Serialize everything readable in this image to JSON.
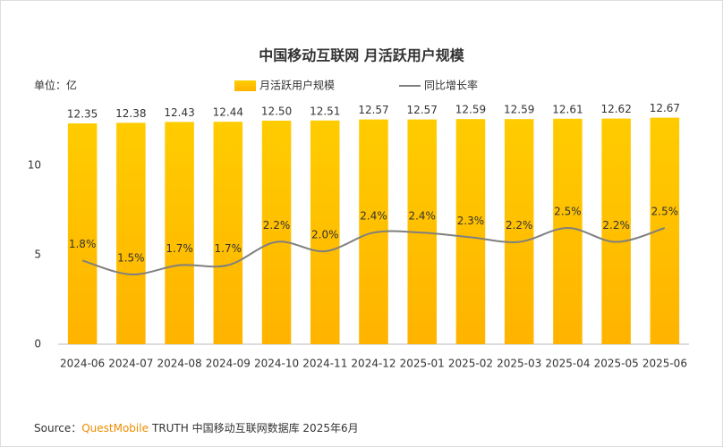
{
  "chart_data": {
    "type": "bar-line",
    "title": "中国移动互联网 月活跃用户规模",
    "unit_label": "单位：亿",
    "categories": [
      "2024-06",
      "2024-07",
      "2024-08",
      "2024-09",
      "2024-10",
      "2024-11",
      "2024-12",
      "2025-01",
      "2025-02",
      "2025-03",
      "2025-04",
      "2025-05",
      "2025-06"
    ],
    "series": [
      {
        "name": "月活跃用户规模",
        "color": "#ffc000",
        "type": "bar",
        "values": [
          12.35,
          12.38,
          12.43,
          12.44,
          12.5,
          12.51,
          12.57,
          12.57,
          12.59,
          12.59,
          12.61,
          12.62,
          12.67
        ],
        "value_labels": [
          "12.35",
          "12.38",
          "12.43",
          "12.44",
          "12.50",
          "12.51",
          "12.57",
          "12.57",
          "12.59",
          "12.59",
          "12.61",
          "12.62",
          "12.67"
        ]
      },
      {
        "name": "同比增长率",
        "color": "#7f7f7f",
        "type": "line",
        "axis": "y2",
        "values": [
          1.8,
          1.5,
          1.7,
          1.7,
          2.2,
          2.0,
          2.4,
          2.4,
          2.3,
          2.2,
          2.5,
          2.2,
          2.5
        ],
        "value_labels": [
          "1.8%",
          "1.5%",
          "1.7%",
          "1.7%",
          "2.2%",
          "2.0%",
          "2.4%",
          "2.4%",
          "2.3%",
          "2.2%",
          "2.5%",
          "2.2%",
          "2.5%"
        ]
      }
    ],
    "ylim": [
      0,
      13
    ],
    "yticks": [
      0,
      5,
      10
    ],
    "y2lim": [
      0,
      5
    ],
    "source_label": "Source：",
    "source_brand": "QuestMobile",
    "source_text": "TRUTH 中国移动互联网数据库 2025年6月"
  }
}
